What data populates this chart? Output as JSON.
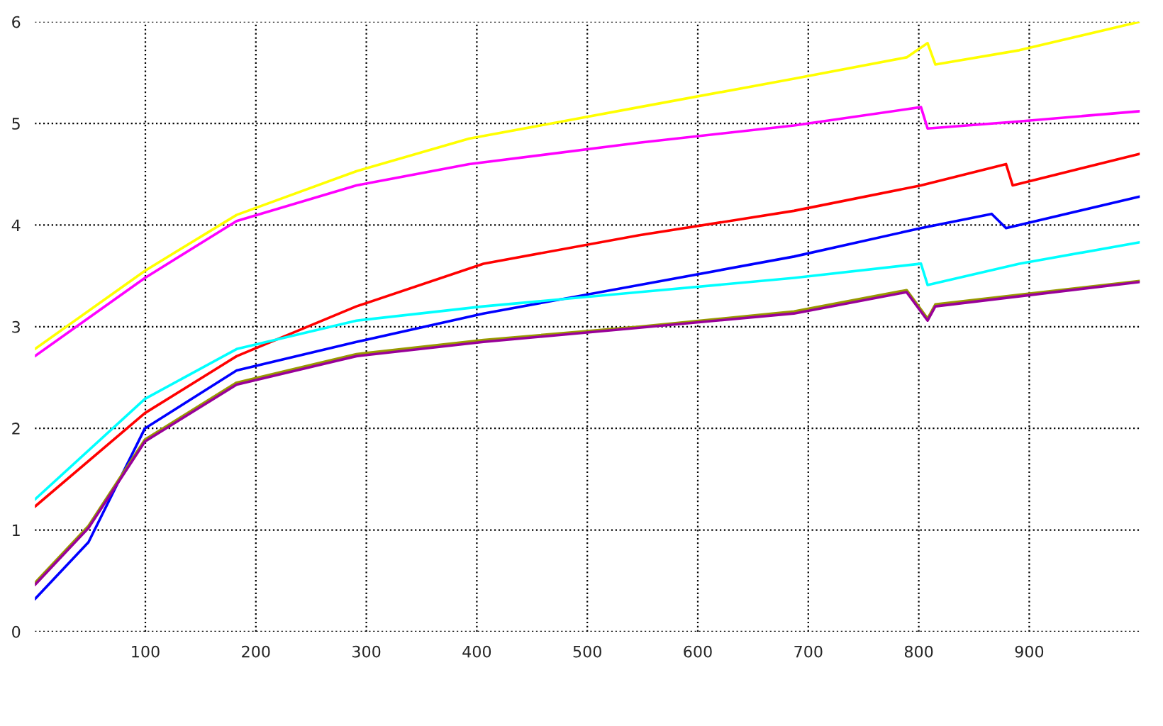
{
  "chart_data": {
    "type": "line",
    "xlim": [
      0,
      1000
    ],
    "ylim": [
      0,
      6
    ],
    "xticks": [
      100,
      200,
      300,
      400,
      500,
      600,
      700,
      800,
      900
    ],
    "yticks": [
      0,
      1,
      2,
      3,
      4,
      5,
      6
    ],
    "grid": true,
    "marker": "none",
    "line_style": "solid",
    "series": [
      {
        "color": "#ffff00",
        "x": [
          0,
          99.6,
          182.6,
          291,
          393,
          547,
          687,
          789,
          808,
          815,
          891,
          1000
        ],
        "values": [
          2.78,
          3.55,
          4.1,
          4.53,
          4.85,
          5.16,
          5.44,
          5.65,
          5.79,
          5.58,
          5.72,
          6.0
        ]
      },
      {
        "color": "#ff00ff",
        "x": [
          0,
          99.6,
          182.6,
          291,
          393,
          547,
          687,
          802,
          808,
          891,
          1000
        ],
        "values": [
          2.71,
          3.48,
          4.04,
          4.39,
          4.6,
          4.81,
          4.98,
          5.16,
          4.95,
          5.02,
          5.12
        ]
      },
      {
        "color": "#ff0000",
        "x": [
          0,
          99.6,
          182.6,
          291,
          406,
          547,
          687,
          802,
          879,
          885,
          1000
        ],
        "values": [
          1.23,
          2.15,
          2.71,
          3.2,
          3.62,
          3.9,
          4.14,
          4.39,
          4.6,
          4.39,
          4.7
        ]
      },
      {
        "color": "#0000ff",
        "x": [
          0,
          48.5,
          99.6,
          182.6,
          291,
          406,
          547,
          687,
          802,
          866,
          879,
          1000
        ],
        "values": [
          0.32,
          0.88,
          2.0,
          2.57,
          2.85,
          3.13,
          3.41,
          3.69,
          3.97,
          4.11,
          3.97,
          4.28
        ]
      },
      {
        "color": "#00ffff",
        "x": [
          0,
          99.6,
          182.6,
          291,
          406,
          547,
          687,
          802,
          808,
          891,
          1000
        ],
        "values": [
          1.3,
          2.29,
          2.78,
          3.06,
          3.2,
          3.34,
          3.48,
          3.62,
          3.41,
          3.62,
          3.83
        ]
      },
      {
        "color": "#999900",
        "x": [
          0,
          48.5,
          99.6,
          182.6,
          291,
          406,
          547,
          687,
          789,
          808,
          815,
          1000
        ],
        "values": [
          0.48,
          1.04,
          1.89,
          2.45,
          2.73,
          2.87,
          3.0,
          3.15,
          3.36,
          3.08,
          3.22,
          3.45
        ]
      },
      {
        "color": "#990099",
        "x": [
          0,
          48.5,
          99.6,
          182.6,
          291,
          406,
          547,
          687,
          789,
          808,
          815,
          1000
        ],
        "values": [
          0.46,
          1.02,
          1.87,
          2.43,
          2.71,
          2.85,
          2.99,
          3.13,
          3.34,
          3.06,
          3.2,
          3.44
        ]
      }
    ]
  }
}
